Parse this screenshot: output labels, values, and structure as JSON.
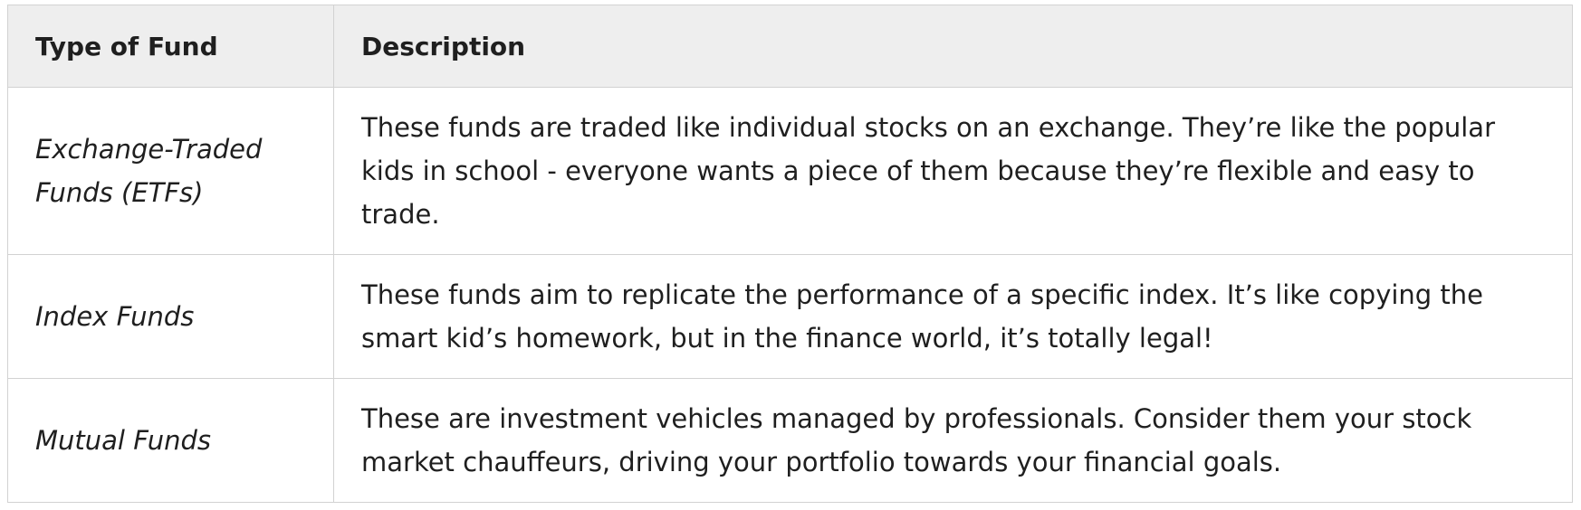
{
  "table": {
    "headers": {
      "type": "Type of Fund",
      "description": "Description"
    },
    "rows": [
      {
        "type": "Exchange-Traded Funds (ETFs)",
        "description": "These funds are traded like individual stocks on an exchange. They’re like the popular kids in school - everyone wants a piece of them because they’re flexible and easy to trade."
      },
      {
        "type": "Index Funds",
        "description": "These funds aim to replicate the performance of a specific index. It’s like copying the smart kid’s homework, but in the finance world, it’s totally legal!"
      },
      {
        "type": "Mutual Funds",
        "description": "These are investment vehicles managed by professionals. Consider them your stock market chauffeurs, driving your portfolio towards your financial goals."
      }
    ]
  }
}
